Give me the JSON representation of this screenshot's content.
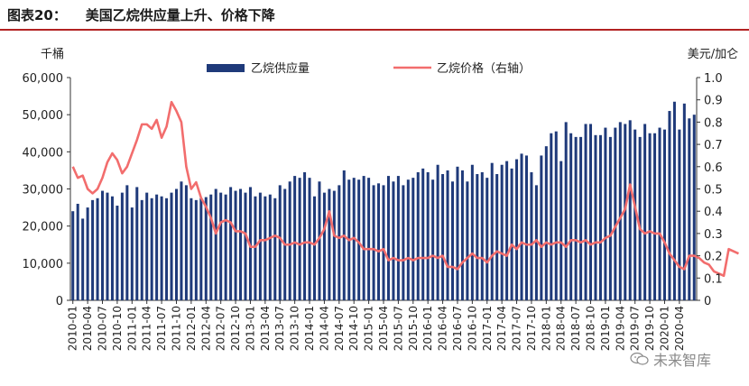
{
  "figure": {
    "title": "图表20：    美国乙烷供应量上升、价格下降",
    "watermark": "未来智库"
  },
  "chart_data": {
    "type": "bar+line",
    "left_axis_unit": "千桶",
    "right_axis_unit": "美元/加仑",
    "left_ylim": [
      0,
      60000
    ],
    "right_ylim": [
      0,
      1.0
    ],
    "left_ticks": [
      "0",
      "10,000",
      "20,000",
      "30,000",
      "40,000",
      "50,000",
      "60,000"
    ],
    "right_ticks": [
      "0",
      "0.1",
      "0.2",
      "0.3",
      "0.4",
      "0.5",
      "0.6",
      "0.7",
      "0.8",
      "0.9",
      "1.0"
    ],
    "x_tick_labels": [
      "2010-01",
      "2010-04",
      "2010-07",
      "2010-10",
      "2011-01",
      "2011-04",
      "2011-07",
      "2011-10",
      "2012-01",
      "2012-04",
      "2012-07",
      "2012-10",
      "2013-01",
      "2013-04",
      "2013-07",
      "2013-10",
      "2014-01",
      "2014-04",
      "2014-07",
      "2014-10",
      "2015-01",
      "2015-04",
      "2015-07",
      "2015-10",
      "2016-01",
      "2016-04",
      "2016-07",
      "2016-10",
      "2017-01",
      "2017-04",
      "2017-07",
      "2017-10",
      "2018-01",
      "2018-04",
      "2018-07",
      "2018-10",
      "2019-01",
      "2019-04",
      "2019-07",
      "2019-10",
      "2020-01",
      "2020-04"
    ],
    "grid": false,
    "legend_position": "top-center",
    "series": [
      {
        "name": "乙烷供应量",
        "kind": "bar",
        "axis": "left",
        "color": "#1f3a7a",
        "values": [
          24000,
          26000,
          22000,
          25000,
          27000,
          27500,
          29500,
          29000,
          28000,
          25500,
          29000,
          31000,
          25000,
          30500,
          27000,
          29000,
          27500,
          28500,
          28000,
          27500,
          29000,
          30000,
          32000,
          31000,
          27500,
          27000,
          27500,
          27800,
          28500,
          30000,
          29000,
          28500,
          30500,
          29500,
          30000,
          29000,
          30500,
          28000,
          29000,
          28000,
          28500,
          27500,
          31000,
          30000,
          32000,
          33500,
          33000,
          34500,
          33000,
          28000,
          32000,
          29000,
          30000,
          29500,
          31000,
          35000,
          32500,
          33000,
          32500,
          33500,
          33000,
          31000,
          31500,
          31000,
          33500,
          32000,
          33500,
          31000,
          32500,
          33000,
          34500,
          35500,
          34500,
          32500,
          36500,
          34000,
          35000,
          32000,
          36000,
          35000,
          32000,
          36500,
          34000,
          34500,
          33000,
          37000,
          34000,
          36500,
          37500,
          35500,
          38000,
          39500,
          39000,
          34500,
          31000,
          39000,
          41500,
          45000,
          45500,
          37500,
          48000,
          45000,
          44000,
          44000,
          47500,
          47500,
          44500,
          44500,
          46500,
          44000,
          46500,
          48000,
          47500,
          48500,
          46000,
          44000,
          47500,
          45000,
          45000,
          46500,
          46000,
          51000,
          53500,
          46000,
          53000,
          49000,
          50000
        ]
      },
      {
        "name": "乙烷价格（右轴）",
        "kind": "line",
        "axis": "right",
        "color": "#f26d6d",
        "values": [
          0.6,
          0.55,
          0.56,
          0.5,
          0.48,
          0.5,
          0.55,
          0.62,
          0.66,
          0.63,
          0.57,
          0.6,
          0.66,
          0.72,
          0.79,
          0.79,
          0.77,
          0.81,
          0.73,
          0.78,
          0.89,
          0.85,
          0.8,
          0.6,
          0.5,
          0.53,
          0.46,
          0.42,
          0.37,
          0.3,
          0.35,
          0.36,
          0.35,
          0.31,
          0.31,
          0.3,
          0.24,
          0.24,
          0.27,
          0.27,
          0.28,
          0.29,
          0.28,
          0.25,
          0.25,
          0.26,
          0.25,
          0.26,
          0.26,
          0.25,
          0.28,
          0.32,
          0.4,
          0.29,
          0.28,
          0.29,
          0.27,
          0.28,
          0.26,
          0.23,
          0.23,
          0.23,
          0.22,
          0.23,
          0.18,
          0.19,
          0.18,
          0.18,
          0.19,
          0.18,
          0.19,
          0.19,
          0.19,
          0.2,
          0.19,
          0.2,
          0.15,
          0.15,
          0.14,
          0.17,
          0.19,
          0.21,
          0.19,
          0.19,
          0.17,
          0.2,
          0.22,
          0.21,
          0.2,
          0.25,
          0.23,
          0.26,
          0.25,
          0.25,
          0.27,
          0.24,
          0.26,
          0.25,
          0.26,
          0.26,
          0.24,
          0.27,
          0.27,
          0.26,
          0.27,
          0.25,
          0.26,
          0.26,
          0.28,
          0.29,
          0.33,
          0.37,
          0.41,
          0.52,
          0.42,
          0.32,
          0.3,
          0.31,
          0.3,
          0.3,
          0.26,
          0.21,
          0.18,
          0.15,
          0.14,
          0.2,
          0.2,
          0.19,
          0.17,
          0.16,
          0.13,
          0.12,
          0.11,
          0.23,
          0.22,
          0.21
        ]
      }
    ]
  }
}
